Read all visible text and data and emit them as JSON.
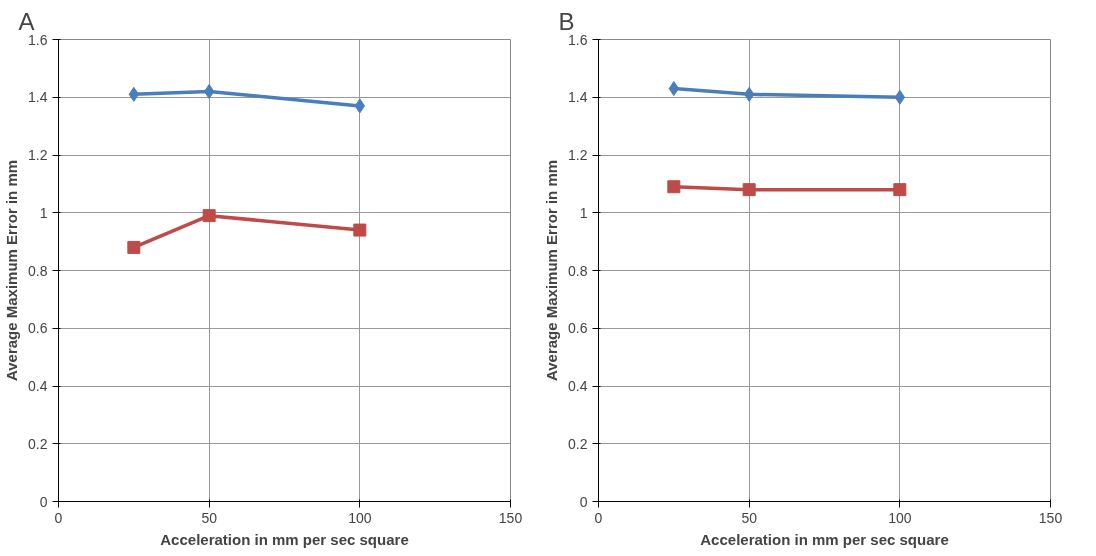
{
  "chart_data": [
    {
      "type": "line",
      "title": "A",
      "xlabel": "Acceleration in mm per sec square",
      "ylabel": "Average Maximum Error in mm",
      "x": [
        25,
        50,
        100
      ],
      "xlim": [
        0,
        150
      ],
      "xticks": [
        0,
        50,
        100,
        150
      ],
      "ylim": [
        0,
        1.6
      ],
      "yticks": [
        0,
        0.2,
        0.4,
        0.6,
        0.8,
        1,
        1.2,
        1.4,
        1.6
      ],
      "grid": true,
      "series": [
        {
          "color": "#4a7ebb",
          "marker": "diamond",
          "values": [
            1.41,
            1.42,
            1.37
          ]
        },
        {
          "color": "#be4b48",
          "marker": "square",
          "values": [
            0.88,
            0.99,
            0.94
          ]
        }
      ]
    },
    {
      "type": "line",
      "title": "B",
      "xlabel": "Acceleration in mm per sec square",
      "ylabel": "Average Maximum Error in mm",
      "x": [
        25,
        50,
        100
      ],
      "xlim": [
        0,
        150
      ],
      "xticks": [
        0,
        50,
        100,
        150
      ],
      "ylim": [
        0,
        1.6
      ],
      "yticks": [
        0,
        0.2,
        0.4,
        0.6,
        0.8,
        1,
        1.2,
        1.4,
        1.6
      ],
      "grid": true,
      "series": [
        {
          "color": "#4a7ebb",
          "marker": "diamond",
          "values": [
            1.43,
            1.41,
            1.4
          ]
        },
        {
          "color": "#be4b48",
          "marker": "square",
          "values": [
            1.09,
            1.08,
            1.08
          ]
        }
      ]
    }
  ]
}
